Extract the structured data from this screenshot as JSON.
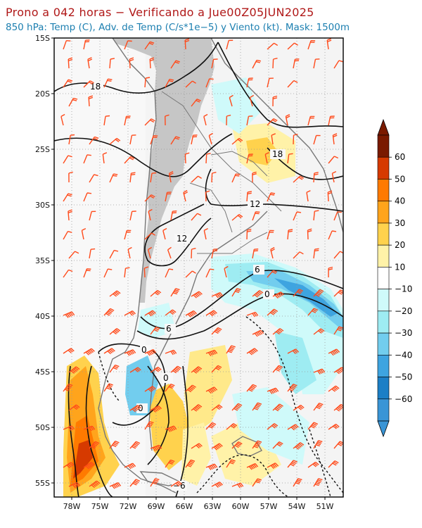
{
  "header": {
    "title": "Prono a 042 horas − Verificando a Jue00Z05JUN2025",
    "subtitle": "850 hPa: Temp (C), Adv. de Temp (C/s*1e−5) y Viento (kt). Mask: 1500m"
  },
  "axes": {
    "lat_labels": [
      "15S",
      "20S",
      "25S",
      "30S",
      "35S",
      "40S",
      "45S",
      "50S",
      "55S"
    ],
    "lon_labels": [
      "78W",
      "75W",
      "72W",
      "69W",
      "66W",
      "63W",
      "60W",
      "57W",
      "54W",
      "51W"
    ]
  },
  "contour_labels": [
    "18",
    "18",
    "12",
    "12",
    "6",
    "6",
    "0",
    "0",
    "0",
    "0",
    "−6"
  ],
  "colorbar": {
    "levels": [
      "60",
      "50",
      "40",
      "30",
      "20",
      "10",
      "−10",
      "−20",
      "−30",
      "−40",
      "−50",
      "−60"
    ],
    "colors": [
      "#7a1a00",
      "#d63a00",
      "#ff7a00",
      "#ffa41c",
      "#ffd24d",
      "#fff2a8",
      "#ffffff",
      "#cffafa",
      "#9eecf2",
      "#72cdee",
      "#3ea4e0",
      "#1c7fc6",
      "#3a95d6"
    ]
  },
  "colors": {
    "title": "#b01818",
    "subtitle": "#1c7fb0",
    "wind_barb": "#ff4a1a",
    "terrain_mask": "#c8c8c8"
  }
}
